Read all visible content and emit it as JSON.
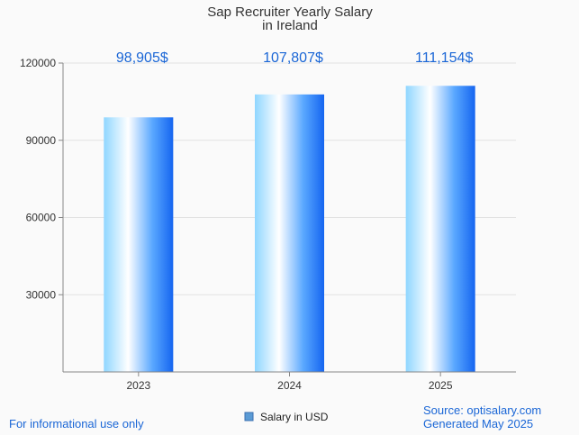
{
  "chart_data": {
    "type": "bar",
    "title": [
      "Sap Recruiter Yearly Salary",
      "in Ireland"
    ],
    "categories": [
      "2023",
      "2024",
      "2025"
    ],
    "series": [
      {
        "name": "Salary in USD",
        "values": [
          98905,
          107807,
          111154
        ]
      }
    ],
    "data_labels": [
      "98,905$",
      "107,807$",
      "111,154$"
    ],
    "y_ticks": [
      30000,
      60000,
      90000,
      120000
    ],
    "ylim": [
      0,
      120000
    ],
    "grid": true,
    "legend_position": "bottom-center",
    "colors": {
      "bar_dark": "#1565f0",
      "bar_light": "#ffffff",
      "bar_mid": "#8fd6ff",
      "label": "#1a66d6",
      "legend_swatch": "#5b9bd5"
    }
  },
  "footer": {
    "left": "For informational use only",
    "source": "Source: optisalary.com",
    "generated": "Generated May 2025"
  }
}
